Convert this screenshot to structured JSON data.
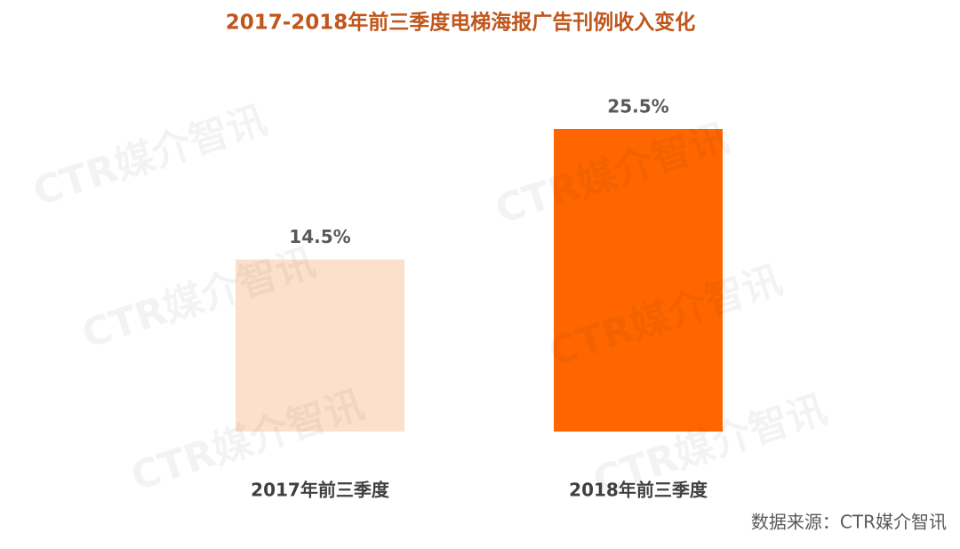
{
  "chart_data": {
    "type": "bar",
    "title": "2017-2018年前三季度电梯海报广告刊例收入变化",
    "categories": [
      "2017年前三季度",
      "2018年前三季度"
    ],
    "values": [
      14.5,
      25.5
    ],
    "value_labels": [
      "14.5%",
      "25.5%"
    ],
    "colors": [
      "#fde0cc",
      "#ff6600"
    ],
    "source": "数据来源：CTR媒介智讯",
    "watermark": "CTR媒介智讯"
  }
}
